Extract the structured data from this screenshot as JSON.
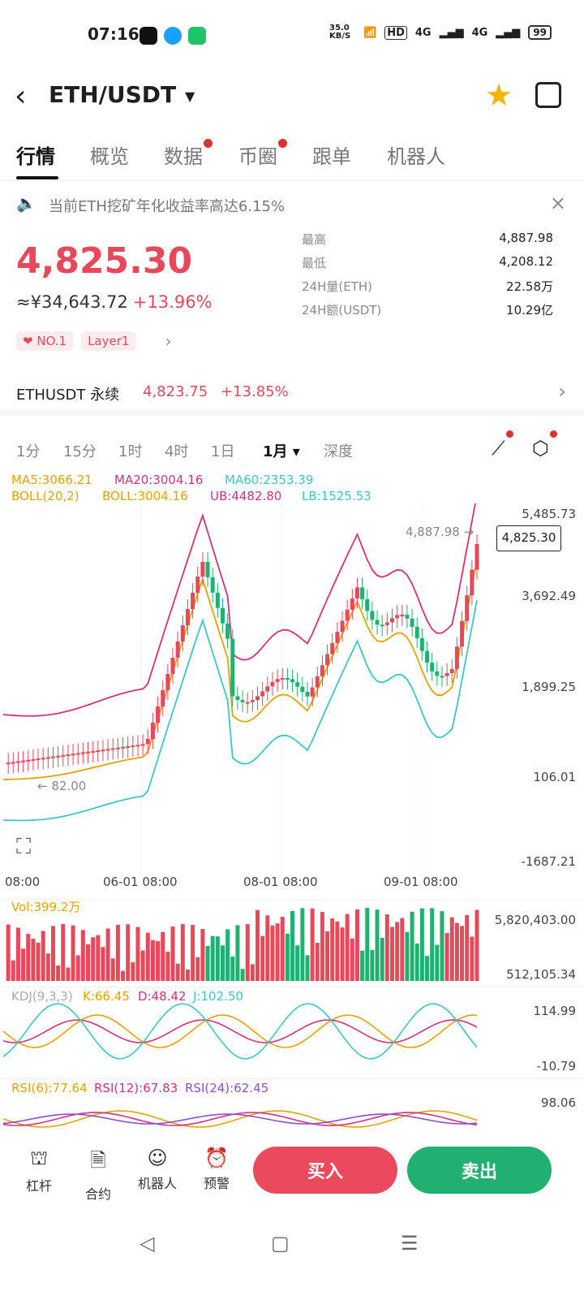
{
  "status": {
    "time": "07:16",
    "net_speed": "35.0 KB/S",
    "hd": "HD",
    "signal1": "4G",
    "signal2": "4G",
    "battery": "99"
  },
  "header": {
    "pair": "ETH/USDT"
  },
  "tabs": [
    {
      "label": "行情",
      "active": true,
      "dot": false
    },
    {
      "label": "概览",
      "active": false,
      "dot": false
    },
    {
      "label": "数据",
      "active": false,
      "dot": true
    },
    {
      "label": "币圈",
      "active": false,
      "dot": true
    },
    {
      "label": "跟单",
      "active": false,
      "dot": false
    },
    {
      "label": "机器人",
      "active": false,
      "dot": false
    }
  ],
  "notice": "当前ETH挖矿年化收益率高达6.15%",
  "price": {
    "last": "4,825.30",
    "cny": "≈¥34,643.72",
    "change": "+13.96%",
    "tags": [
      "NO.1",
      "Layer1"
    ]
  },
  "stats": [
    {
      "k": "最高",
      "v": "4,887.98"
    },
    {
      "k": "最低",
      "v": "4,208.12"
    },
    {
      "k": "24H量(ETH)",
      "v": "22.58万"
    },
    {
      "k": "24H额(USDT)",
      "v": "10.29亿"
    }
  ],
  "perp": {
    "name": "ETHUSDT 永续",
    "price": "4,823.75",
    "change": "+13.85%"
  },
  "time_tabs": [
    "1分",
    "15分",
    "1时",
    "4时",
    "1日",
    "1月",
    "深度"
  ],
  "active_time_tab": "1月",
  "legend": {
    "ma5": "MA5:3066.21",
    "ma20": "MA20:3004.16",
    "ma60": "MA60:2353.39",
    "boll": "BOLL(20,2)",
    "boll_mid": "BOLL:3004.16",
    "ub": "UB:4482.80",
    "lb": "LB:1525.53",
    "vol": "Vol:399.2万",
    "kdj": "KDJ(9,3,3)",
    "k": "K:66.45",
    "d": "D:48.42",
    "j": "J:102.50",
    "rsi6": "RSI(6):77.64",
    "rsi12": "RSI(12):67.83",
    "rsi24": "RSI(24):62.45"
  },
  "colors": {
    "up": "#e8485a",
    "down": "#21b070",
    "ma5": "#e6a200",
    "ma20": "#d6307e",
    "ma60": "#3bc7c7"
  },
  "chart_data": {
    "type": "candlestick",
    "y_ticks": [
      "5,485.73",
      "3,692.49",
      "1,899.25",
      "106.01",
      "-1687.21"
    ],
    "x_ticks": [
      "08:00",
      "06-01 08:00",
      "08-01 08:00",
      "09-01 08:00"
    ],
    "high_marker": "4,887.98 →",
    "low_marker": "← 82.00",
    "current_price_tag": "4,825.30",
    "vol_ticks": [
      "5,820,403.00",
      "512,105.34"
    ],
    "kdj_ticks": [
      "114.99",
      "-10.79"
    ],
    "rsi_ticks": [
      "98.06"
    ]
  },
  "bottom": {
    "items": [
      "杠杆",
      "合约",
      "机器人",
      "预警"
    ],
    "buy": "买入",
    "sell": "卖出"
  }
}
